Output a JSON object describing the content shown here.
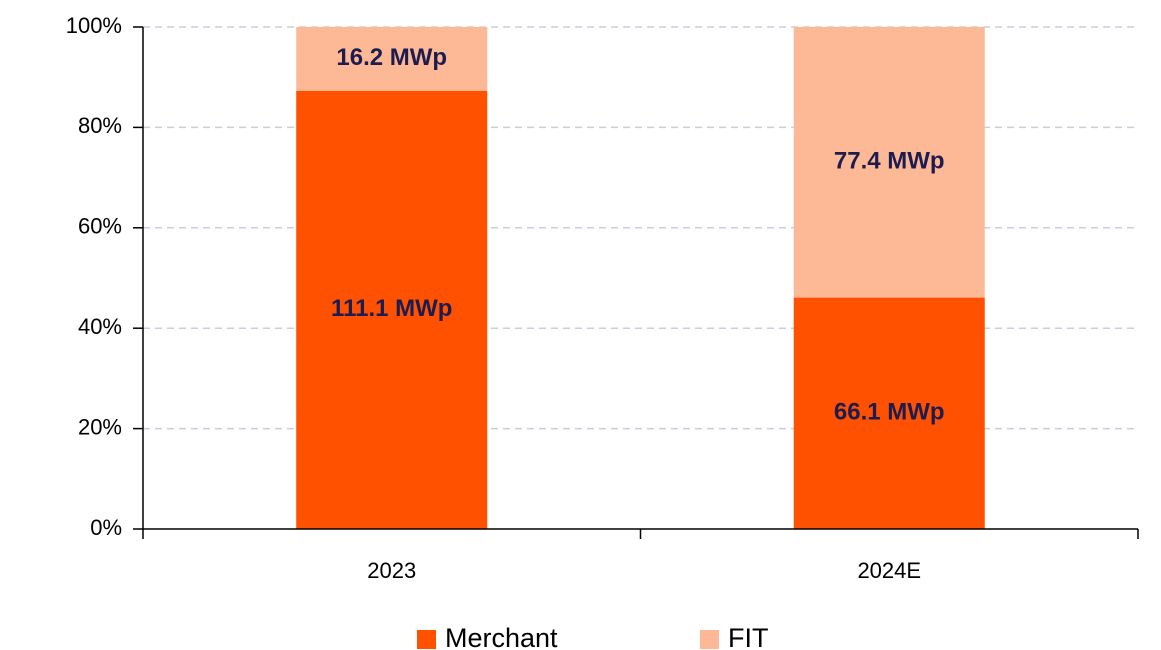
{
  "chart_data": {
    "type": "stacked_bar",
    "categories": [
      "2023",
      "2024E"
    ],
    "series": [
      {
        "name": "Merchant",
        "color": "#ff5100",
        "values": [
          87.3,
          46.1
        ],
        "value_labels": [
          "111.1 MWp",
          "66.1 MWp"
        ]
      },
      {
        "name": "FIT",
        "color": "#fdb995",
        "values": [
          12.7,
          53.9
        ],
        "value_labels": [
          "16.2 MWp",
          "77.4 MWp"
        ]
      }
    ],
    "ylim": [
      0,
      100
    ],
    "yticks": [
      {
        "value": 0,
        "label": "0%"
      },
      {
        "value": 20,
        "label": "20%"
      },
      {
        "value": 40,
        "label": "40%"
      },
      {
        "value": 60,
        "label": "60%"
      },
      {
        "value": 80,
        "label": "80%"
      },
      {
        "value": 100,
        "label": "100%"
      }
    ],
    "grid": true,
    "legend": "bottom"
  }
}
